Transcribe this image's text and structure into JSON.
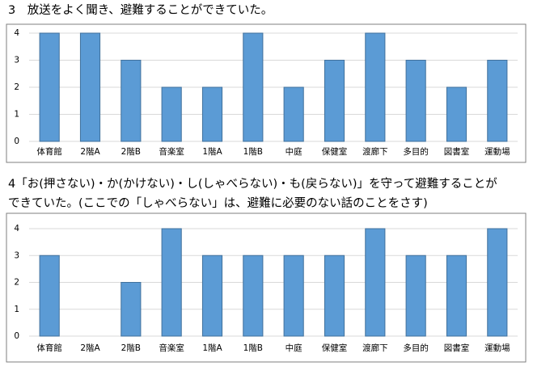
{
  "chart_data": [
    {
      "type": "bar",
      "title": [
        "3　放送をよく聞き、避難することができていた。"
      ],
      "categories": [
        "体育館",
        "2階A",
        "2階B",
        "音楽室",
        "1階A",
        "1階B",
        "中庭",
        "保健室",
        "渡廊下",
        "多目的",
        "図書室",
        "運動場"
      ],
      "values": [
        4,
        4,
        3,
        2,
        2,
        4,
        2,
        3,
        4,
        3,
        2,
        3
      ],
      "color": "#5b9bd5",
      "ylim": [
        0,
        4
      ],
      "yticks": [
        0,
        1,
        2,
        3,
        4
      ],
      "grid": true
    },
    {
      "type": "bar",
      "title": [
        "4「お(押さない)・か(かけない)・し(しゃべらない)・も(戻らない)」を守って避難することが",
        "できていた。(ここでの「しゃべらない」は、避難に必要のない話のことをさす)"
      ],
      "categories": [
        "体育館",
        "2階A",
        "2階B",
        "音楽室",
        "1階A",
        "1階B",
        "中庭",
        "保健室",
        "渡廊下",
        "多目的",
        "図書室",
        "運動場"
      ],
      "values": [
        3,
        0,
        2,
        4,
        3,
        3,
        3,
        3,
        4,
        3,
        3,
        4
      ],
      "color": "#5b9bd5",
      "ylim": [
        0,
        4
      ],
      "yticks": [
        0,
        1,
        2,
        3,
        4
      ],
      "grid": true
    }
  ]
}
